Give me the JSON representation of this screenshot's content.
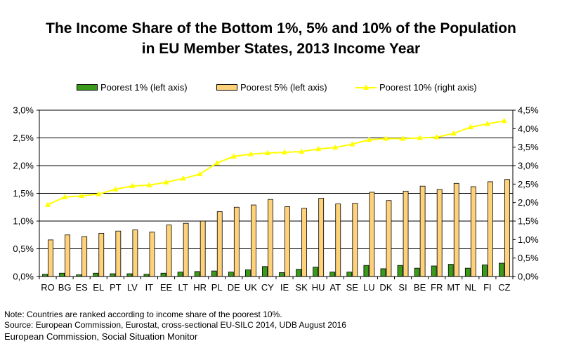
{
  "title_line1": "The Income Share of the Bottom 1%, 5% and 10% of the Population",
  "title_line2": "in EU Member States, 2013 Income Year",
  "legend": {
    "p1": "Poorest 1% (left axis)",
    "p5": "Poorest 5% (left axis)",
    "p10": "Poorest 10% (right axis)"
  },
  "colors": {
    "p1": "#3a9a1a",
    "p5": "#ffd27a",
    "p10": "#ffff00",
    "grid": "#000000"
  },
  "notes": {
    "note": "Note: Countries are ranked according to income share of the poorest 10%.",
    "source": "Source: European Commission, Eurostat, cross-sectional EU-SILC 2014, UDB August 2016",
    "footer": "European Commission, Social Situation Monitor"
  },
  "chart_data": {
    "type": "bar",
    "title": "The Income Share of the Bottom 1%, 5% and 10% of the Population in EU Member States, 2013 Income Year",
    "categories": [
      "RO",
      "BG",
      "ES",
      "EL",
      "PT",
      "LV",
      "IT",
      "EE",
      "LT",
      "HR",
      "PL",
      "DE",
      "UK",
      "CY",
      "IE",
      "SK",
      "HU",
      "AT",
      "SE",
      "LU",
      "DK",
      "SI",
      "BE",
      "FR",
      "MT",
      "NL",
      "FI",
      "CZ"
    ],
    "left_axis": {
      "ylim": [
        0,
        3.0
      ],
      "ticks": [
        "0,0%",
        "0,5%",
        "1,0%",
        "1,5%",
        "2,0%",
        "2,5%",
        "3,0%"
      ],
      "tick_values": [
        0,
        0.5,
        1.0,
        1.5,
        2.0,
        2.5,
        3.0
      ]
    },
    "right_axis": {
      "ylim": [
        0,
        4.5
      ],
      "ticks": [
        "0,0%",
        "0,5%",
        "1,0%",
        "1,5%",
        "2,0%",
        "2,5%",
        "3,0%",
        "3,5%",
        "4,0%",
        "4,5%"
      ],
      "tick_values": [
        0,
        0.5,
        1.0,
        1.5,
        2.0,
        2.5,
        3.0,
        3.5,
        4.0,
        4.5
      ]
    },
    "grid": true,
    "legend_position": "top",
    "series": [
      {
        "name": "Poorest 1% (left axis)",
        "axis": "left",
        "kind": "bar",
        "values": [
          0.04,
          0.06,
          0.03,
          0.06,
          0.05,
          0.05,
          0.04,
          0.06,
          0.08,
          0.09,
          0.1,
          0.08,
          0.12,
          0.18,
          0.07,
          0.13,
          0.17,
          0.08,
          0.08,
          0.2,
          0.14,
          0.2,
          0.15,
          0.19,
          0.22,
          0.15,
          0.21,
          0.24
        ]
      },
      {
        "name": "Poorest 5% (left axis)",
        "axis": "left",
        "kind": "bar",
        "values": [
          0.66,
          0.75,
          0.72,
          0.78,
          0.82,
          0.84,
          0.8,
          0.93,
          0.96,
          1.0,
          1.17,
          1.25,
          1.29,
          1.39,
          1.26,
          1.23,
          1.41,
          1.31,
          1.32,
          1.52,
          1.37,
          1.54,
          1.63,
          1.57,
          1.68,
          1.62,
          1.71,
          1.75
        ]
      },
      {
        "name": "Poorest 10% (right axis)",
        "axis": "right",
        "kind": "line",
        "values": [
          1.94,
          2.15,
          2.18,
          2.23,
          2.36,
          2.45,
          2.47,
          2.55,
          2.65,
          2.77,
          3.07,
          3.25,
          3.31,
          3.34,
          3.36,
          3.38,
          3.45,
          3.49,
          3.58,
          3.7,
          3.73,
          3.73,
          3.75,
          3.77,
          3.87,
          4.04,
          4.13,
          4.21
        ]
      }
    ]
  }
}
